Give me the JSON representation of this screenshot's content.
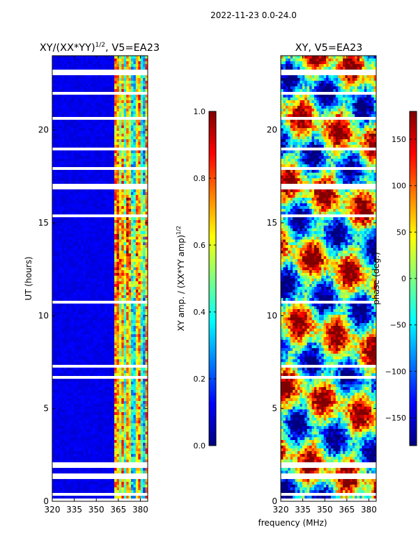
{
  "suptitle": "2022-11-23 0.0-24.0",
  "colors": {
    "jet": [
      "#00007f",
      "#0000ff",
      "#007fff",
      "#00ffff",
      "#7fff7f",
      "#ffff00",
      "#ff7f00",
      "#ff0000",
      "#7f0000"
    ]
  },
  "chart_data": [
    {
      "type": "heatmap",
      "title": "XY/(XX*YY)",
      "title_sup": "1/2",
      "title_suffix": ", V5=EA23",
      "xlabel": "",
      "ylabel": "UT (hours)",
      "x_ticks": [
        320,
        335,
        350,
        365,
        380
      ],
      "y_ticks": [
        0,
        5,
        10,
        15,
        20
      ],
      "xlim": [
        320,
        385
      ],
      "ylim": [
        0,
        24
      ],
      "value": "normalized XY amplitude",
      "colorbar": {
        "label": "XY amp. / (XX*YY amp)",
        "label_sup": "1/2",
        "ticks": [
          "0.0",
          "0.2",
          "0.4",
          "0.6",
          "0.8",
          "1.0"
        ],
        "range": [
          0.0,
          1.0
        ]
      }
    },
    {
      "type": "heatmap",
      "title": "XY, V5=EA23",
      "xlabel": "frequency (MHz)",
      "ylabel": "",
      "x_ticks": [
        320,
        335,
        350,
        365,
        380
      ],
      "y_ticks": [
        0,
        5,
        10,
        15,
        20
      ],
      "xlim": [
        320,
        385
      ],
      "ylim": [
        0,
        24
      ],
      "value": "XY phase",
      "colorbar": {
        "label": "phase (deg.)",
        "ticks": [
          "−150",
          "−100",
          "−50",
          "0",
          "50",
          "100",
          "150"
        ],
        "range": [
          -180,
          180
        ]
      }
    }
  ]
}
